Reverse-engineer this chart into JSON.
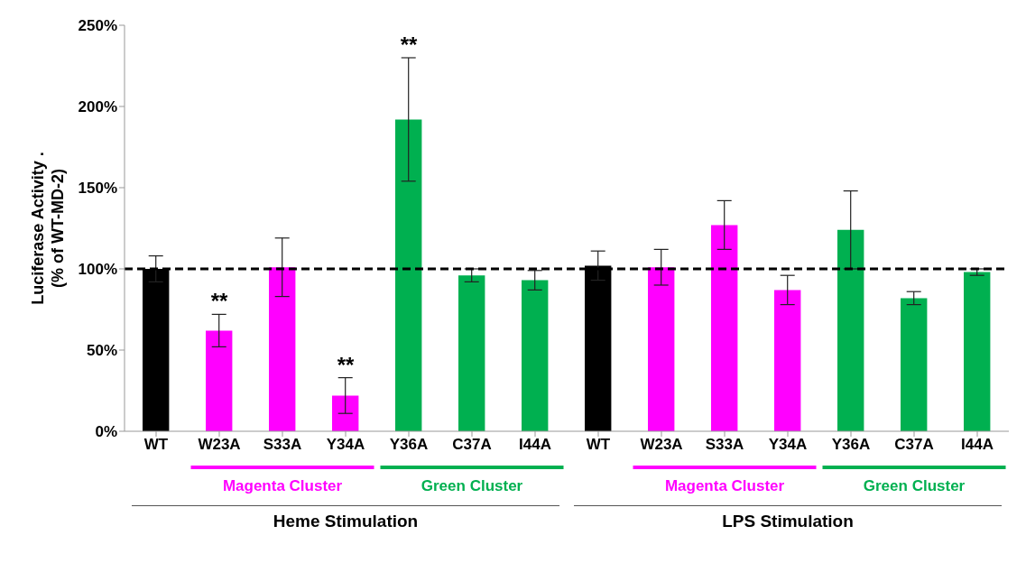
{
  "chart_data": {
    "type": "bar",
    "ylabel": "Luciferase Activity .\n(% of WT-MD-2)",
    "categories": [
      "WT",
      "W23A",
      "S33A",
      "Y34A",
      "Y36A",
      "C37A",
      "I44A",
      "WT",
      "W23A",
      "S33A",
      "Y34A",
      "Y36A",
      "C37A",
      "I44A"
    ],
    "values": [
      100,
      62,
      101,
      22,
      192,
      96,
      93,
      102,
      101,
      127,
      87,
      124,
      82,
      98
    ],
    "errors": [
      8,
      10,
      18,
      11,
      38,
      4,
      6,
      9,
      11,
      15,
      9,
      24,
      4,
      2
    ],
    "colors": [
      "#000000",
      "#ff00ff",
      "#ff00ff",
      "#ff00ff",
      "#00b050",
      "#00b050",
      "#00b050",
      "#000000",
      "#ff00ff",
      "#ff00ff",
      "#ff00ff",
      "#00b050",
      "#00b050",
      "#00b050"
    ],
    "ylim": [
      0,
      250
    ],
    "yticks": [
      {
        "value": 0,
        "label": "0%"
      },
      {
        "value": 50,
        "label": "50%"
      },
      {
        "value": 100,
        "label": "100%"
      },
      {
        "value": 150,
        "label": "150%"
      },
      {
        "value": 200,
        "label": "200%"
      },
      {
        "value": 250,
        "label": "250%"
      }
    ],
    "ref_lines": [
      {
        "axis": "y",
        "value": 100,
        "color": "#000000",
        "line_style": "dashed"
      }
    ],
    "annotations": [
      "**",
      "**",
      "**",
      "Magenta Cluster",
      "Green Cluster",
      "Magenta Cluster",
      "Green Cluster",
      "Heme Stimulation",
      "LPS Stimulation"
    ]
  }
}
